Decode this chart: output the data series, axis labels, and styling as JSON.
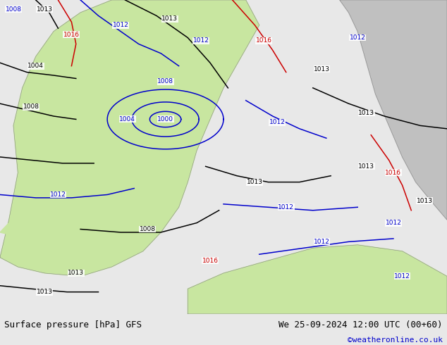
{
  "title_left": "Surface pressure [hPa] GFS",
  "title_right": "We 25-09-2024 12:00 UTC (00+60)",
  "copyright": "©weatheronline.co.uk",
  "fig_width": 6.34,
  "fig_height": 4.9,
  "dpi": 100,
  "bg_color": "#e8e8e8",
  "land_color_green": "#c8e6a0",
  "land_color_gray": "#c0c0c0",
  "sea_color": "#ffffff",
  "blue": "#0000cc",
  "black": "#000000",
  "red": "#cc0000",
  "footer_bg": "#e0e0e0",
  "text_color": "#000000",
  "copyright_color": "#0000cc",
  "font_size_label": 9,
  "font_size_copyright": 8,
  "contour_lw": 1.1,
  "label_fontsize": 6.5
}
